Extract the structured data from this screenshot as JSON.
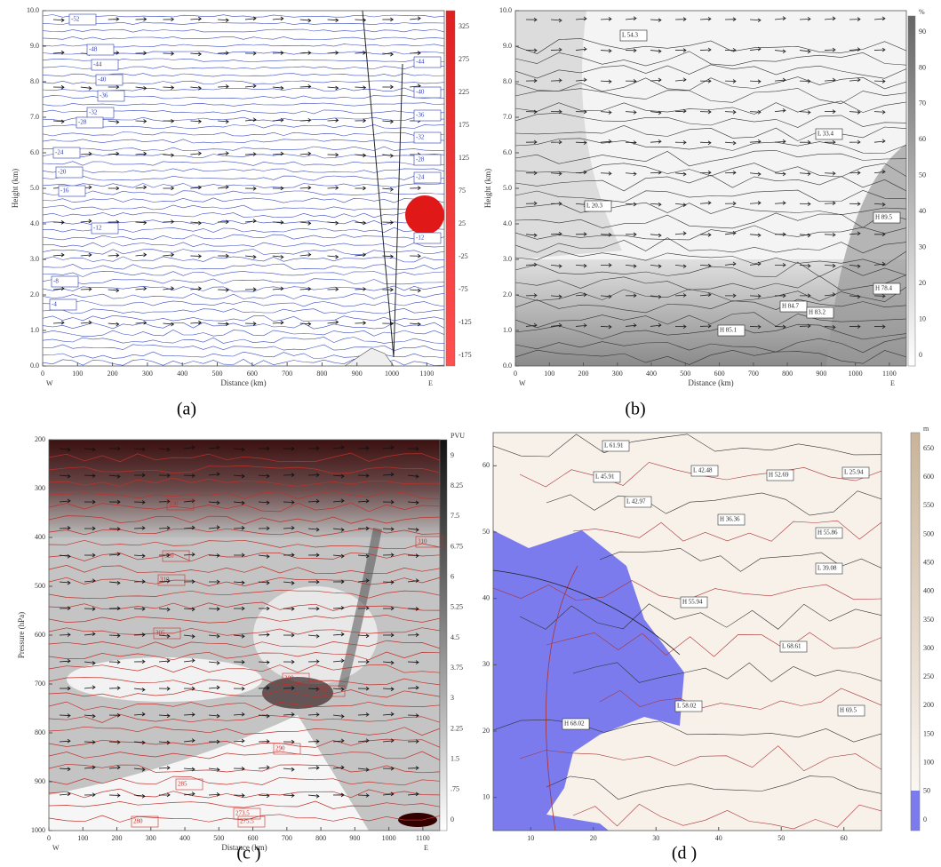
{
  "panels": [
    {
      "caption": "(a)",
      "y_label": "Height (km)",
      "x_label": "Distance (km)",
      "y_ticks": [
        "10.0",
        "9.0",
        "8.0",
        "7.0",
        "6.0",
        "5.0",
        "4.0",
        "3.0",
        "2.0",
        "1.0",
        "0.0"
      ],
      "x_ticks": [
        "0",
        "100",
        "200",
        "300",
        "400",
        "500",
        "600",
        "700",
        "800",
        "900",
        "1000",
        "1100"
      ],
      "x_ends": [
        "W",
        "E"
      ],
      "colorbar_ticks": [
        "325",
        "275",
        "225",
        "175",
        "125",
        "75",
        "25",
        "-25",
        "-75",
        "-125",
        "-175"
      ],
      "contour_labels": [
        "-52",
        "-48",
        "-44",
        "-40",
        "-36",
        "-32",
        "-28",
        "-24",
        "-20",
        "-16",
        "-12",
        "-8",
        "-4",
        "-44",
        "-40",
        "-36",
        "-32",
        "-28",
        "-24",
        "-12"
      ]
    },
    {
      "caption": "(b)",
      "y_label": "Height (km)",
      "x_label": "Distance (km)",
      "y_ticks": [
        "10.0",
        "9.0",
        "8.0",
        "7.0",
        "6.0",
        "5.0",
        "4.0",
        "3.0",
        "2.0",
        "1.0",
        "0.0"
      ],
      "x_ticks": [
        "0",
        "100",
        "200",
        "300",
        "400",
        "500",
        "600",
        "700",
        "800",
        "900",
        "1000",
        "1100"
      ],
      "x_ends": [
        "W",
        "E"
      ],
      "colorbar_unit": "%",
      "colorbar_ticks": [
        "90",
        "80",
        "70",
        "60",
        "50",
        "40",
        "30",
        "20",
        "10",
        "0"
      ],
      "contour_labels": [
        "L 54.3",
        "L 33.4",
        "H 89.5",
        "H 78.4",
        "H 85.1",
        "H 84.7",
        "H 83.2",
        "L 20.3"
      ]
    },
    {
      "caption": "(c )",
      "y_label": "Pressure (hPa)",
      "x_label": "Distance (km)",
      "y_ticks": [
        "200",
        "300",
        "400",
        "500",
        "600",
        "700",
        "800",
        "900",
        "1000"
      ],
      "x_ticks": [
        "0",
        "100",
        "200",
        "300",
        "400",
        "500",
        "600",
        "700",
        "800",
        "900",
        "1000",
        "1100"
      ],
      "x_ends": [
        "W",
        "E"
      ],
      "colorbar_unit": "PVU",
      "colorbar_ticks": [
        "9",
        "8.25",
        "7.5",
        "6.75",
        "6",
        "5.25",
        "4.5",
        "3.75",
        "3",
        "2.25",
        "1.5",
        ".75",
        "0"
      ],
      "contour_labels": [
        "330",
        "320",
        "310",
        "305",
        "300",
        "295",
        "290",
        "285",
        "280",
        "275.5",
        "273.5",
        "310"
      ]
    },
    {
      "caption": "(d )",
      "x_label": "",
      "y_ticks": [
        "60",
        "50",
        "40",
        "30",
        "20",
        "10"
      ],
      "x_ticks": [
        "10",
        "20",
        "30",
        "40",
        "50",
        "60"
      ],
      "colorbar_unit": "m",
      "colorbar_ticks": [
        "650",
        "600",
        "550",
        "500",
        "450",
        "400",
        "350",
        "300",
        "250",
        "200",
        "150",
        "100",
        "50",
        "0"
      ],
      "contour_labels": [
        "L 61.91",
        "L 45.91",
        "L 42.48",
        "H 52.69",
        "L 25.94",
        "L 42.97",
        "H 36.36",
        "H 55.86",
        "L 39.08",
        "H 55.94",
        "L 68.61",
        "L 58.02",
        "H 68.02",
        "H 69.5"
      ]
    }
  ]
}
